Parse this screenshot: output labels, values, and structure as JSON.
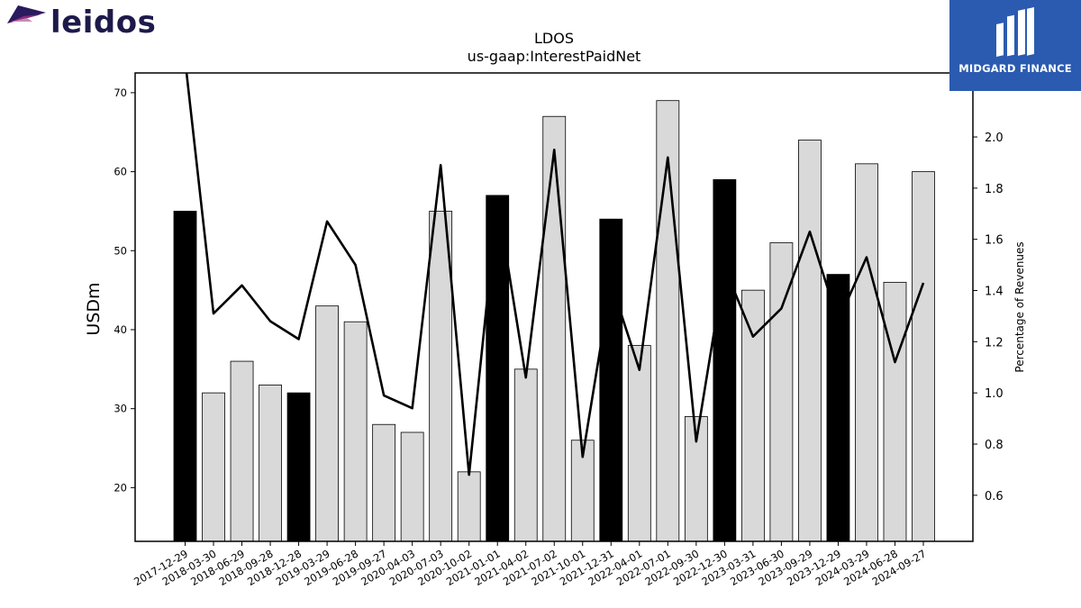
{
  "brand": {
    "left_logo_text": "leidos",
    "right_logo_text": "MIDGARD FINANCE",
    "right_logo_color": "#2b5bb0"
  },
  "chart_data": {
    "type": "bar",
    "title": "LDOS",
    "subtitle": "us-gaap:InterestPaidNet",
    "ylabel": "USDm",
    "y2label": "Percentage of Revenues",
    "ylim": [
      13.2,
      72.5
    ],
    "y2lim": [
      0.42,
      2.25
    ],
    "yticks": [
      20,
      30,
      40,
      50,
      60,
      70
    ],
    "y2ticks": [
      "0.6",
      "0.8",
      "1.0",
      "1.2",
      "1.4",
      "1.6",
      "1.8",
      "2.0"
    ],
    "categories": [
      "2017-12-29",
      "2018-03-30",
      "2018-06-29",
      "2018-09-28",
      "2018-12-28",
      "2019-03-29",
      "2019-06-28",
      "2019-09-27",
      "2020-04-03",
      "2020-07-03",
      "2020-10-02",
      "2021-01-01",
      "2021-04-02",
      "2021-07-02",
      "2021-10-01",
      "2021-12-31",
      "2022-04-01",
      "2022-07-01",
      "2022-09-30",
      "2022-12-30",
      "2023-03-31",
      "2023-06-30",
      "2023-09-29",
      "2023-12-29",
      "2024-03-29",
      "2024-06-28",
      "2024-09-27"
    ],
    "values": [
      55,
      32,
      36,
      33,
      32,
      43,
      41,
      28,
      27,
      55,
      22,
      57,
      35,
      67,
      26,
      54,
      38,
      69,
      29,
      59,
      45,
      51,
      64,
      47,
      61,
      46,
      60
    ],
    "fiscal_year_end": [
      true,
      false,
      false,
      false,
      true,
      false,
      false,
      false,
      false,
      false,
      false,
      true,
      false,
      false,
      false,
      true,
      false,
      false,
      false,
      true,
      false,
      false,
      false,
      true,
      false,
      false,
      false
    ],
    "line_series": {
      "name": "Percentage of Revenues",
      "values": [
        2.3,
        1.31,
        1.42,
        1.28,
        1.21,
        1.67,
        1.5,
        0.99,
        0.94,
        1.89,
        0.68,
        1.75,
        1.06,
        1.95,
        0.75,
        1.43,
        1.09,
        1.92,
        0.81,
        1.49,
        1.22,
        1.33,
        1.63,
        1.28,
        1.53,
        1.12,
        1.43
      ]
    },
    "colors": {
      "fiscal_year_end_bar": "#000000",
      "quarter_bar": "#d9d9d9",
      "line": "#000000"
    },
    "grid": false
  }
}
